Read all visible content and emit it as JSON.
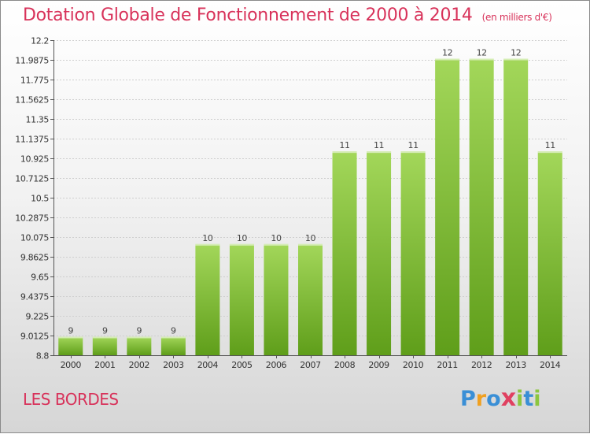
{
  "chart_data": {
    "type": "bar",
    "title": "Dotation Globale de Fonctionnement de 2000 à 2014",
    "subtitle": "(en milliers d'€)",
    "xlabel": "",
    "ylabel": "",
    "categories": [
      "2000",
      "2001",
      "2002",
      "2003",
      "2004",
      "2005",
      "2006",
      "2007",
      "2008",
      "2009",
      "2010",
      "2011",
      "2012",
      "2013",
      "2014"
    ],
    "values": [
      9,
      9,
      9,
      9,
      10,
      10,
      10,
      10,
      11,
      11,
      11,
      12,
      12,
      12,
      11
    ],
    "data_labels": [
      "9",
      "9",
      "9",
      "9",
      "10",
      "10",
      "10",
      "10",
      "11",
      "11",
      "11",
      "12",
      "12",
      "12",
      "11"
    ],
    "ylim": [
      8.8,
      12.2
    ],
    "yticks": [
      8.8,
      9.0125,
      9.225,
      9.4375,
      9.65,
      9.8625,
      10.075,
      10.2875,
      10.5,
      10.7125,
      10.925,
      11.1375,
      11.35,
      11.5625,
      11.775,
      11.9875,
      12.2
    ],
    "ytick_labels": [
      "8.8",
      "9.0125",
      "9.225",
      "9.4375",
      "9.65",
      "9.8625",
      "10.075",
      "10.2875",
      "10.5",
      "10.7125",
      "10.925",
      "11.1375",
      "11.35",
      "11.5625",
      "11.775",
      "11.9875",
      "12.2"
    ],
    "grid": true,
    "bar_color": "#8cc63f"
  },
  "location_label": "LES BORDES",
  "brand": {
    "letters": [
      "P",
      "r",
      "o",
      "x",
      "i",
      "t",
      "i"
    ],
    "colors": [
      "#3a8fd6",
      "#f0a020",
      "#3a8fd6",
      "#e04060",
      "#8cc63f",
      "#3a8fd6",
      "#8cc63f"
    ]
  }
}
